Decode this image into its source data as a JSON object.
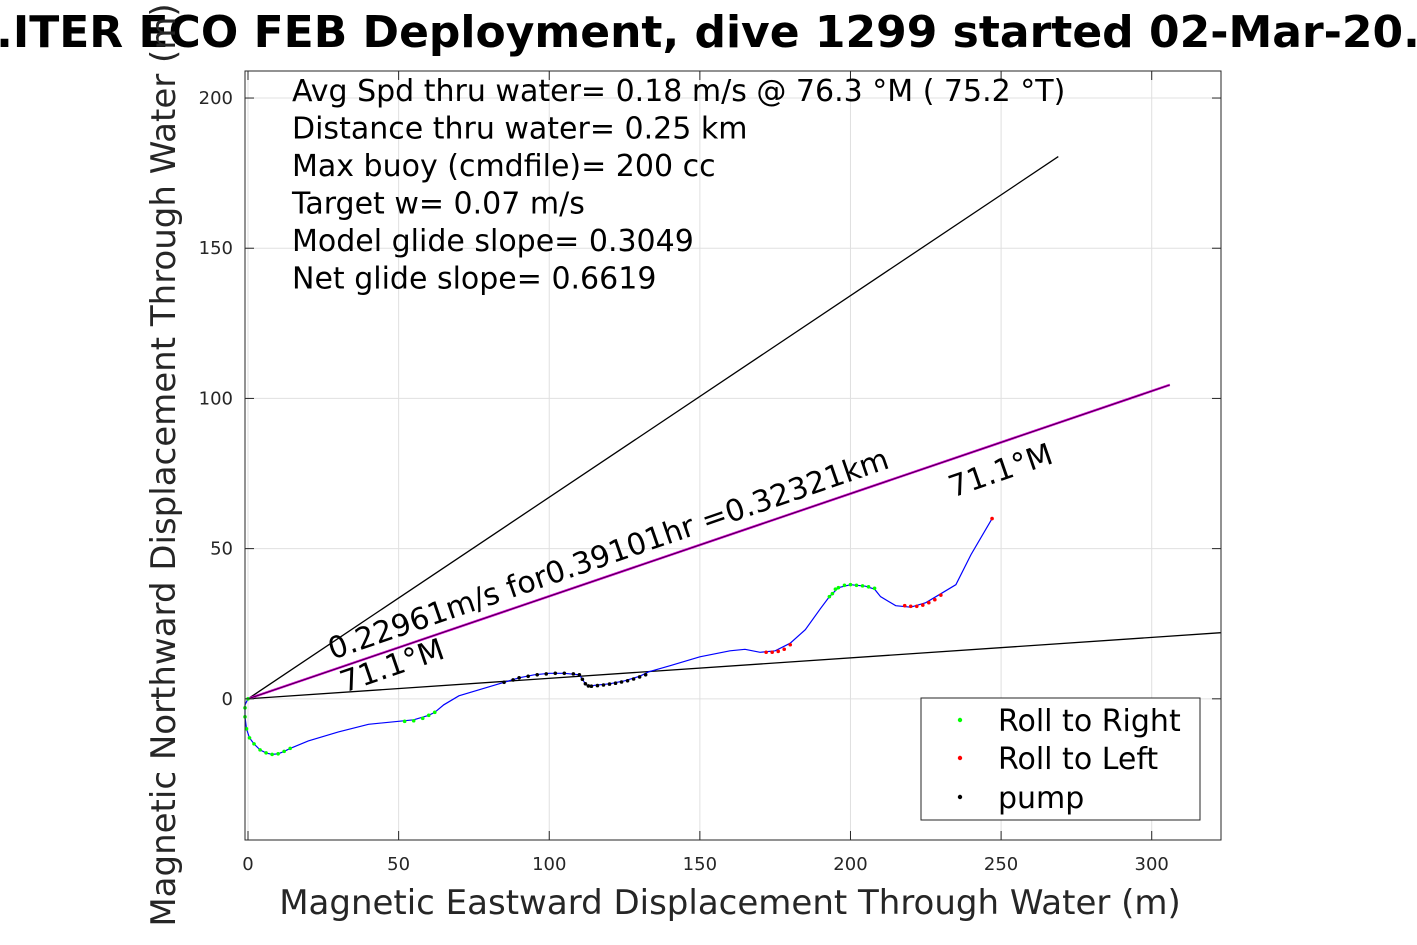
{
  "chart_data": {
    "type": "scatter",
    "title": "...ITER ECO FEB Deployment, dive 1299 started 02-Mar-20...",
    "xlabel": "Magnetic Eastward Displacement Through Water (m)",
    "ylabel": "Magnetic Northward Displacement Through Water (m)",
    "xlim": [
      -1,
      323
    ],
    "ylim": [
      -47,
      209
    ],
    "xticks": [
      0,
      50,
      100,
      150,
      200,
      250,
      300
    ],
    "yticks": [
      0,
      50,
      100,
      150,
      200
    ],
    "grid": true,
    "legend_placement": "bottom-right",
    "info_lines": [
      "Avg Spd thru water=  0.18 m/s @  76.3 °M ( 75.2 °T)",
      "Distance thru water=  0.25 km",
      "Max buoy (cmdfile)= 200 cc",
      "Target w= 0.07 m/s",
      "Model glide slope= 0.3049",
      "Net glide slope= 0.6619"
    ],
    "annotations": [
      {
        "text": "0.22961m/s for0.39101hr =0.32321km",
        "x": 28,
        "y": 13,
        "angle": 19
      },
      {
        "text": "71.1°M",
        "x": 32,
        "y": 2,
        "angle": 19
      },
      {
        "text": "71.1°M",
        "x": 234,
        "y": 67,
        "angle": 19
      }
    ],
    "colors": {
      "track": "#0000ff",
      "roll_right": "#00ff00",
      "roll_left": "#ff0000",
      "pump": "#000000",
      "guide_lines": "#000000",
      "current_line": "#cc00cc",
      "grid": "#e0e0e0"
    },
    "series": [
      {
        "name": "track",
        "kind": "line",
        "x": [
          0,
          -1,
          -1,
          -0.5,
          0.5,
          2,
          4,
          6,
          8,
          10,
          12,
          14,
          20,
          30,
          40,
          50,
          55,
          60,
          62,
          65,
          70,
          80,
          85,
          90,
          95,
          100,
          105,
          110,
          112,
          113,
          115,
          120,
          125,
          130,
          133,
          140,
          150,
          160,
          165,
          170,
          175,
          180,
          185,
          190,
          193,
          196,
          200,
          205,
          208,
          210,
          215,
          220,
          225,
          230,
          235,
          240,
          247
        ],
        "y": [
          0,
          -2,
          -6,
          -10,
          -13,
          -15,
          -17,
          -18,
          -18.5,
          -18.3,
          -17.5,
          -16.5,
          -14,
          -11,
          -8.5,
          -7.5,
          -7,
          -5.5,
          -4.5,
          -2,
          1,
          4,
          5.5,
          7,
          8,
          8.5,
          8.5,
          8,
          5,
          4,
          4.5,
          5,
          6,
          7.5,
          9,
          11,
          14,
          16,
          16.5,
          15.5,
          16,
          18.5,
          23,
          30,
          34,
          37,
          38,
          37.5,
          36.5,
          34,
          31,
          30.5,
          32,
          35,
          38,
          48,
          60
        ]
      },
      {
        "name": "Roll to Right",
        "kind": "points",
        "x": [
          0,
          -1,
          -1,
          -0.5,
          0.5,
          2,
          4,
          6,
          8,
          10,
          12,
          14,
          52,
          55,
          58,
          60,
          62,
          193,
          194,
          195,
          196,
          198,
          200,
          202,
          204,
          206,
          208
        ],
        "y": [
          0,
          -3,
          -6,
          -10,
          -13,
          -15,
          -17,
          -18,
          -18.5,
          -18.3,
          -17.5,
          -16.5,
          -7.5,
          -7.3,
          -6.5,
          -5.5,
          -4.5,
          34,
          35,
          36.5,
          37,
          37.8,
          38,
          37.8,
          37.6,
          37.3,
          36.8
        ]
      },
      {
        "name": "Roll to Left",
        "kind": "points",
        "x": [
          172,
          174,
          176,
          178,
          180,
          218,
          220,
          222,
          224,
          226,
          228,
          230,
          247
        ],
        "y": [
          15.5,
          15.5,
          15.8,
          16.5,
          18,
          31,
          30.8,
          30.8,
          31.2,
          32,
          33,
          34.5,
          60
        ]
      },
      {
        "name": "pump",
        "kind": "points",
        "x": [
          85,
          88,
          90,
          93,
          96,
          99,
          102,
          105,
          108,
          110,
          111,
          112,
          113,
          114,
          116,
          118,
          120,
          122,
          124,
          126,
          128,
          130,
          132
        ],
        "y": [
          5.5,
          6.3,
          7,
          7.5,
          8,
          8.3,
          8.5,
          8.5,
          8.3,
          8,
          6.5,
          5,
          4.3,
          4.2,
          4.4,
          4.6,
          4.9,
          5.2,
          5.6,
          6,
          6.6,
          7.3,
          8
        ]
      },
      {
        "name": "guide_upper",
        "kind": "line",
        "x": [
          0,
          269
        ],
        "y": [
          0,
          180.5
        ]
      },
      {
        "name": "guide_lower",
        "kind": "line",
        "x": [
          0,
          323
        ],
        "y": [
          0,
          22
        ]
      },
      {
        "name": "current_vector",
        "kind": "line",
        "x": [
          0,
          306
        ],
        "y": [
          0,
          104.5
        ]
      }
    ],
    "legend": [
      {
        "label": "Roll to Right",
        "color": "#00ff00"
      },
      {
        "label": "Roll to Left",
        "color": "#ff0000"
      },
      {
        "label": "pump",
        "color": "#000000"
      }
    ]
  }
}
